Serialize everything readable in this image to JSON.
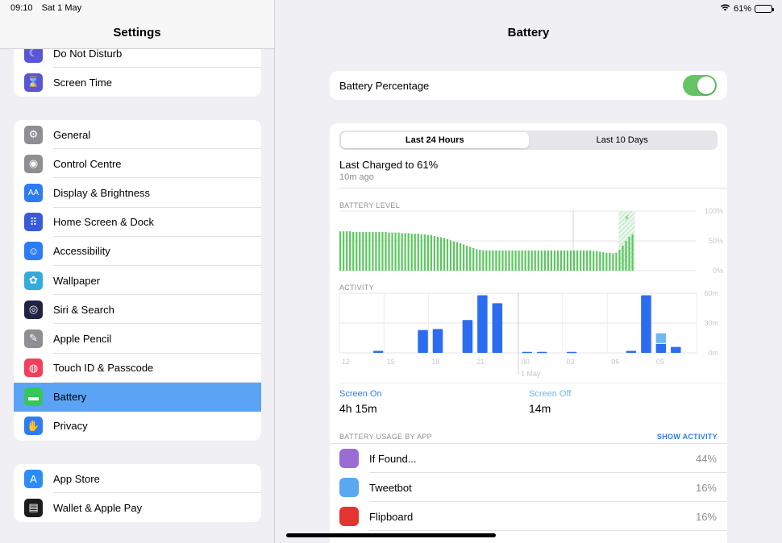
{
  "status": {
    "time": "09:10",
    "date": "Sat 1 May",
    "battery": "61%"
  },
  "sidebar": {
    "title": "Settings",
    "group1": [
      {
        "label": "Do Not Disturb",
        "icon": "moon-icon",
        "color": "#5856d6",
        "glyph": "☾"
      },
      {
        "label": "Screen Time",
        "icon": "hourglass-icon",
        "color": "#5856d6",
        "glyph": "⌛"
      }
    ],
    "group2": [
      {
        "label": "General",
        "icon": "gear-icon",
        "color": "#8e8e93",
        "glyph": "⚙"
      },
      {
        "label": "Control Centre",
        "icon": "toggles-icon",
        "color": "#8e8e93",
        "glyph": "◉"
      },
      {
        "label": "Display & Brightness",
        "icon": "text-size-icon",
        "color": "#2c7cf6",
        "glyph": "AA"
      },
      {
        "label": "Home Screen & Dock",
        "icon": "grid-icon",
        "color": "#3a5bd9",
        "glyph": "⠿"
      },
      {
        "label": "Accessibility",
        "icon": "accessibility-icon",
        "color": "#2c7cf6",
        "glyph": "☺"
      },
      {
        "label": "Wallpaper",
        "icon": "flower-icon",
        "color": "#35aadc",
        "glyph": "✿"
      },
      {
        "label": "Siri & Search",
        "icon": "siri-icon",
        "color": "#222244",
        "glyph": "◎"
      },
      {
        "label": "Apple Pencil",
        "icon": "pencil-icon",
        "color": "#8e8e93",
        "glyph": "✎"
      },
      {
        "label": "Touch ID & Passcode",
        "icon": "fingerprint-icon",
        "color": "#f0405a",
        "glyph": "◍"
      },
      {
        "label": "Battery",
        "icon": "battery-icon",
        "color": "#34c759",
        "glyph": "▬",
        "selected": true
      },
      {
        "label": "Privacy",
        "icon": "hand-icon",
        "color": "#2c7cf6",
        "glyph": "✋"
      }
    ],
    "group3": [
      {
        "label": "App Store",
        "icon": "app-store-icon",
        "color": "#2c8cf6",
        "glyph": "A"
      },
      {
        "label": "Wallet & Apple Pay",
        "icon": "wallet-icon",
        "color": "#1c1c1e",
        "glyph": "▤"
      }
    ]
  },
  "detail": {
    "title": "Battery",
    "battery_percentage_label": "Battery Percentage",
    "battery_percentage_on": true,
    "segments": [
      "Last 24 Hours",
      "Last 10 Days"
    ],
    "last_charged": "Last Charged to 61%",
    "last_charged_ago": "10m ago",
    "battery_level_label": "BATTERY LEVEL",
    "activity_label": "ACTIVITY",
    "level_ticks": [
      "100%",
      "50%",
      "0%"
    ],
    "activity_ticks": [
      "60m",
      "30m",
      "0m"
    ],
    "x_ticks": [
      "12",
      "15",
      "18",
      "21",
      "00",
      "03",
      "06",
      "09"
    ],
    "date_label": "1 May",
    "screen_on_label": "Screen On",
    "screen_on_value": "4h 15m",
    "screen_off_label": "Screen Off",
    "screen_off_value": "14m",
    "usage_label": "BATTERY USAGE BY APP",
    "show_activity": "SHOW ACTIVITY",
    "apps": [
      {
        "name": "If Found...",
        "pct": "44%",
        "icon": "if-found-icon",
        "color": "#9b6bd6"
      },
      {
        "name": "Tweetbot",
        "pct": "16%",
        "icon": "tweetbot-icon",
        "color": "#5aa8f0"
      },
      {
        "name": "Flipboard",
        "pct": "16%",
        "icon": "flipboard-icon",
        "color": "#e3342f"
      }
    ]
  },
  "chart_data": [
    {
      "type": "bar",
      "title": "BATTERY LEVEL",
      "ylim": [
        0,
        100
      ],
      "yticks": [
        "100%",
        "50%",
        "0%"
      ],
      "values": [
        66,
        66,
        66,
        66,
        65,
        65,
        65,
        65,
        65,
        65,
        65,
        65,
        65,
        65,
        65,
        64,
        64,
        64,
        64,
        63,
        63,
        63,
        62,
        62,
        62,
        61,
        61,
        60,
        60,
        58,
        57,
        56,
        55,
        53,
        51,
        49,
        48,
        46,
        44,
        42,
        40,
        38,
        36,
        35,
        34,
        34,
        34,
        34,
        34,
        34,
        34,
        34,
        34,
        34,
        34,
        34,
        34,
        34,
        34,
        34,
        34,
        34,
        34,
        34,
        34,
        34,
        34,
        34,
        34,
        34,
        34,
        34,
        34,
        34,
        34,
        34,
        34,
        34,
        33,
        33,
        32,
        31,
        30,
        30,
        29,
        30,
        35,
        42,
        50,
        57,
        61
      ],
      "charging_region_start_index": 86,
      "grid": true
    },
    {
      "type": "bar",
      "title": "ACTIVITY",
      "categories": [
        "12",
        "13",
        "14",
        "15",
        "16",
        "17",
        "18",
        "19",
        "20",
        "21",
        "22",
        "23",
        "00",
        "01",
        "02",
        "03",
        "04",
        "05",
        "06",
        "07",
        "08",
        "09"
      ],
      "series": [
        {
          "values": [
            0,
            2,
            0,
            0,
            23,
            24,
            0,
            33,
            58,
            50,
            0,
            1,
            1,
            0,
            1,
            0,
            0,
            0,
            2,
            58,
            9,
            6
          ]
        },
        {
          "values": [
            0,
            0,
            0,
            0,
            0,
            0,
            0,
            0,
            0,
            0,
            0,
            0,
            0,
            0,
            0,
            0,
            0,
            0,
            0,
            0,
            10,
            0
          ]
        }
      ],
      "ylim": [
        0,
        60
      ],
      "yticks": [
        "60m",
        "30m",
        "0m"
      ],
      "xticks": [
        "12",
        "15",
        "18",
        "21",
        "00",
        "03",
        "06",
        "09"
      ],
      "grid": true
    }
  ]
}
